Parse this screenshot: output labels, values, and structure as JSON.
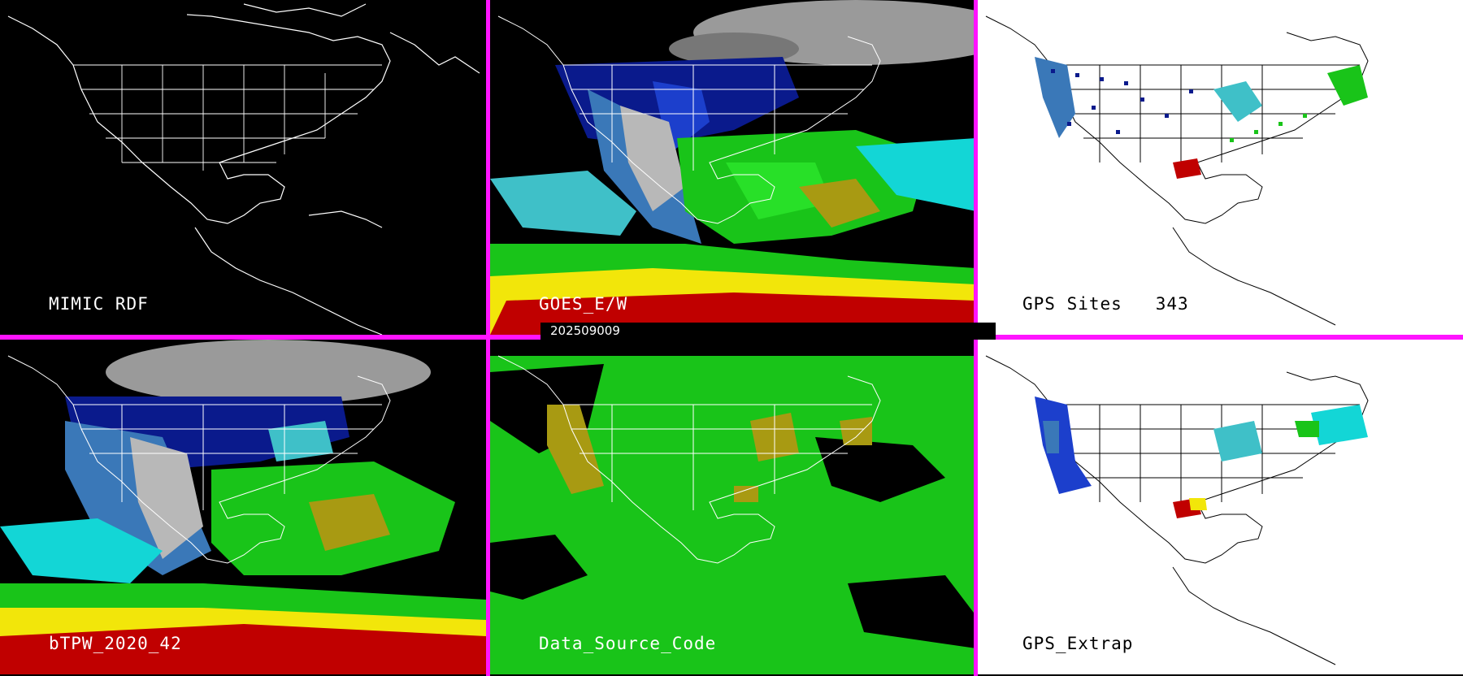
{
  "panels": [
    {
      "label": "MIMIC RDF"
    },
    {
      "label": "GOES_E/W"
    },
    {
      "label": "GPS Sites   343"
    },
    {
      "label": "bTPW_2020_42"
    },
    {
      "label": "Data_Source_Code"
    },
    {
      "label": "GPS_Extrap"
    }
  ],
  "timestamp": "202509009",
  "colors": {
    "divider": "#ff14ff",
    "coast": "#ffffff",
    "navy": "#0a1a8c",
    "blue": "#1c3fcc",
    "steel": "#3a78b8",
    "cyan": "#13d6d6",
    "teal": "#3fc0c8",
    "green": "#19c419",
    "bright_green": "#28e028",
    "olive": "#a89a12",
    "yellow": "#f2e60a",
    "red": "#c00000",
    "gray": "#b8b8b8"
  }
}
